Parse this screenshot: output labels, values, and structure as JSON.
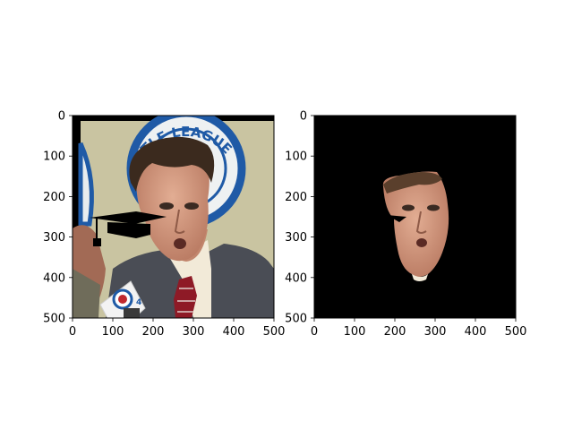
{
  "chart_data": [
    {
      "type": "image",
      "title": "",
      "xlim": [
        0,
        500
      ],
      "ylim": [
        500,
        0
      ],
      "xticks": [
        0,
        100,
        200,
        300,
        400,
        500
      ],
      "yticks": [
        0,
        100,
        200,
        300,
        400,
        500
      ],
      "xtick_labels": [
        "0",
        "100",
        "200",
        "300",
        "400",
        "500"
      ],
      "ytick_labels": [
        "0",
        "100",
        "200",
        "300",
        "400",
        "500"
      ],
      "grid": false,
      "content": "photo of a man speaking into a microphone, with a black graduation cap overlay"
    },
    {
      "type": "image",
      "title": "",
      "xlim": [
        0,
        500
      ],
      "ylim": [
        500,
        0
      ],
      "xticks": [
        0,
        100,
        200,
        300,
        400,
        500
      ],
      "yticks": [
        0,
        100,
        200,
        300,
        400,
        500
      ],
      "xtick_labels": [
        "0",
        "100",
        "200",
        "300",
        "400",
        "500"
      ],
      "ytick_labels": [
        "0",
        "100",
        "200",
        "300",
        "400",
        "500"
      ],
      "grid": false,
      "content": "face-only mask of the same photo on a black background"
    }
  ],
  "colors": {
    "backdrop": "#c9c4a1",
    "logo_blue": "#1f5aa6",
    "hair": "#3b2a1e",
    "skin": "#d49a80",
    "suit": "#4a4d55",
    "shirt": "#f2ead8",
    "tie": "#8e1a26",
    "mask_bg": "#000000",
    "cap": "#000000"
  },
  "photo_text": {
    "logo": "TLE LEAGUE",
    "mic_flag": "4"
  }
}
